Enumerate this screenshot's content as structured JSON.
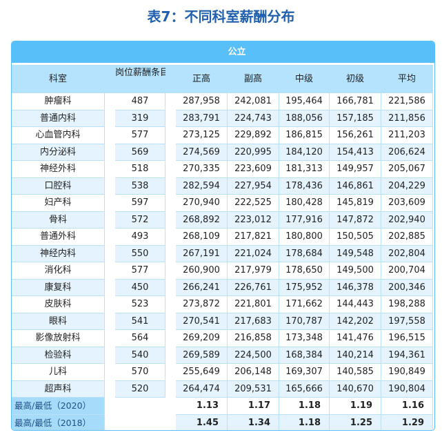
{
  "title": "表7：不同科室薪酬分布",
  "band": "公立",
  "headers": {
    "dept": "科室",
    "count": "岗位薪酬条目数",
    "cols": [
      "正高",
      "副高",
      "中级",
      "初级",
      "平均"
    ]
  },
  "rows": [
    [
      "肿瘤科",
      "487",
      "287,958",
      "242,081",
      "195,464",
      "166,781",
      "221,586"
    ],
    [
      "普通内科",
      "319",
      "283,791",
      "224,743",
      "188,056",
      "157,185",
      "211,856"
    ],
    [
      "心血管内科",
      "577",
      "273,125",
      "229,892",
      "186,815",
      "156,261",
      "211,203"
    ],
    [
      "内分泌科",
      "569",
      "274,569",
      "220,995",
      "184,120",
      "154,413",
      "206,624"
    ],
    [
      "神经外科",
      "518",
      "270,335",
      "223,609",
      "181,313",
      "149,957",
      "205,067"
    ],
    [
      "口腔科",
      "538",
      "282,594",
      "227,954",
      "178,436",
      "146,861",
      "204,229"
    ],
    [
      "妇产科",
      "597",
      "270,940",
      "222,525",
      "180,428",
      "145,819",
      "203,609"
    ],
    [
      "骨科",
      "572",
      "268,892",
      "223,012",
      "177,916",
      "147,872",
      "202,940"
    ],
    [
      "普通外科",
      "493",
      "268,109",
      "217,821",
      "180,800",
      "150,505",
      "202,885"
    ],
    [
      "神经内科",
      "550",
      "267,191",
      "221,024",
      "178,684",
      "149,548",
      "202,804"
    ],
    [
      "消化科",
      "577",
      "260,900",
      "217,979",
      "178,650",
      "149,500",
      "200,704"
    ],
    [
      "康复科",
      "450",
      "266,241",
      "226,761",
      "175,952",
      "146,378",
      "200,346"
    ],
    [
      "皮肤科",
      "523",
      "273,872",
      "221,801",
      "171,662",
      "144,443",
      "198,288"
    ],
    [
      "眼科",
      "541",
      "270,541",
      "217,683",
      "170,787",
      "142,202",
      "197,558"
    ],
    [
      "影像放射科",
      "564",
      "269,209",
      "216,858",
      "173,348",
      "141,476",
      "196,515"
    ],
    [
      "检验科",
      "540",
      "269,589",
      "224,500",
      "168,384",
      "140,214",
      "194,361"
    ],
    [
      "儿科",
      "570",
      "255,649",
      "206,148",
      "169,307",
      "140,585",
      "190,849"
    ],
    [
      "超声科",
      "520",
      "264,474",
      "209,531",
      "165,666",
      "140,670",
      "190,804"
    ]
  ],
  "summary": [
    {
      "label": "最高/最低（2020）",
      "values": [
        "1.13",
        "1.17",
        "1.18",
        "1.19",
        "1.16"
      ]
    },
    {
      "label": "最高/最低（2018）",
      "values": [
        "1.45",
        "1.34",
        "1.18",
        "1.25",
        "1.29"
      ]
    }
  ]
}
